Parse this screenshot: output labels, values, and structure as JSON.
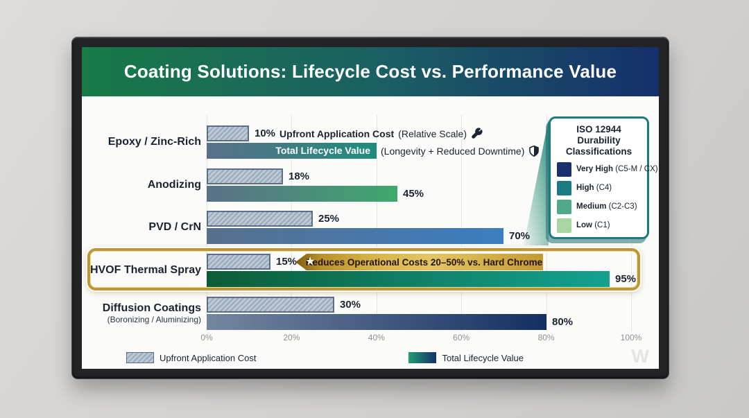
{
  "header": {
    "title": "Coating Solutions: Lifecycle Cost vs. Performance Value"
  },
  "axis": {
    "ticks": [
      "0%",
      "20%",
      "40%",
      "60%",
      "80%",
      "100%"
    ]
  },
  "rows": [
    {
      "label": "Epoxy / Zinc-Rich",
      "sublabel": "",
      "upfront": 10,
      "upfront_label": "10%",
      "upfront_title": "Upfront Application Cost",
      "upfront_note": "(Relative Scale)",
      "lifecycle": 40,
      "lifecycle_inbar": "Total Lifecycle Value",
      "lifecycle_note": "(Longevity + Reduced Downtime)",
      "bar_from": "#5a7089",
      "bar_to": "#1f8c7d"
    },
    {
      "label": "Anodizing",
      "sublabel": "",
      "upfront": 18,
      "upfront_label": "18%",
      "lifecycle": 45,
      "lifecycle_label": "45%",
      "bar_from": "#5a7089",
      "bar_to": "#3ea86c"
    },
    {
      "label": "PVD / CrN",
      "sublabel": "",
      "upfront": 25,
      "upfront_label": "25%",
      "lifecycle": 70,
      "lifecycle_label": "70%",
      "bar_from": "#56708d",
      "bar_to": "#3c7ec1"
    },
    {
      "label": "HVOF Thermal Spray",
      "sublabel": "",
      "upfront": 15,
      "upfront_label": "15%",
      "lifecycle": 95,
      "lifecycle_label": "95%",
      "bar_from": "#0b5c36",
      "bar_to": "#13a292",
      "highlighted": true
    },
    {
      "label": "Diffusion Coatings",
      "sublabel": "(Boronizing / Aluminizing)",
      "upfront": 30,
      "upfront_label": "30%",
      "lifecycle": 80,
      "lifecycle_label": "80%",
      "bar_from": "#74879f",
      "bar_to": "#142e62"
    }
  ],
  "badge": {
    "star": "★",
    "text": "Reduces Operational Costs 20–50% vs. Hard Chrome"
  },
  "iso_box": {
    "title": "ISO 12944 Durability Classifications",
    "items": [
      {
        "label": "Very High",
        "note": "(C5-M / CX)",
        "color": "#1a2f6b"
      },
      {
        "label": "High",
        "note": "(C4)",
        "color": "#1b7b82"
      },
      {
        "label": "Medium",
        "note": "(C2-C3)",
        "color": "#51a88d"
      },
      {
        "label": "Low",
        "note": "(C1)",
        "color": "#a8d6a0"
      }
    ]
  },
  "legend": {
    "upfront": "Upfront Application Cost",
    "lifecycle": "Total Lifecycle Value"
  },
  "watermark": "W",
  "colors": {
    "header_gradient": [
      "#177a47",
      "#1b5f63",
      "#15306b"
    ],
    "upfront_fill": "#bcc8d4",
    "upfront_border": "#5c6e86",
    "gold_border": "#bd9638",
    "badge_gold": "#d9b44a",
    "iso_border": "#1d7a80"
  },
  "chart_data": {
    "type": "bar",
    "orientation": "horizontal",
    "title": "Coating Solutions: Lifecycle Cost vs. Performance Value",
    "categories": [
      "Epoxy / Zinc-Rich",
      "Anodizing",
      "PVD / CrN",
      "HVOF Thermal Spray",
      "Diffusion Coatings (Boronizing / Aluminizing)"
    ],
    "series": [
      {
        "name": "Upfront Application Cost",
        "values": [
          10,
          18,
          25,
          15,
          30
        ]
      },
      {
        "name": "Total Lifecycle Value",
        "values": [
          40,
          45,
          70,
          95,
          80
        ]
      }
    ],
    "xlim": [
      0,
      100
    ],
    "x_ticks": [
      "0%",
      "20%",
      "40%",
      "60%",
      "80%",
      "100%"
    ],
    "grid": true,
    "legend_position": "bottom",
    "highlighted_category": "HVOF Thermal Spray",
    "annotations": [
      "Upfront Application Cost (Relative Scale)",
      "Total Lifecycle Value (Longevity + Reduced Downtime)",
      "Reduces Operational Costs 20–50% vs. Hard Chrome",
      "ISO 12944 Durability Classifications: Very High (C5-M / CX), High (C4), Medium (C2-C3), Low (C1)"
    ]
  }
}
